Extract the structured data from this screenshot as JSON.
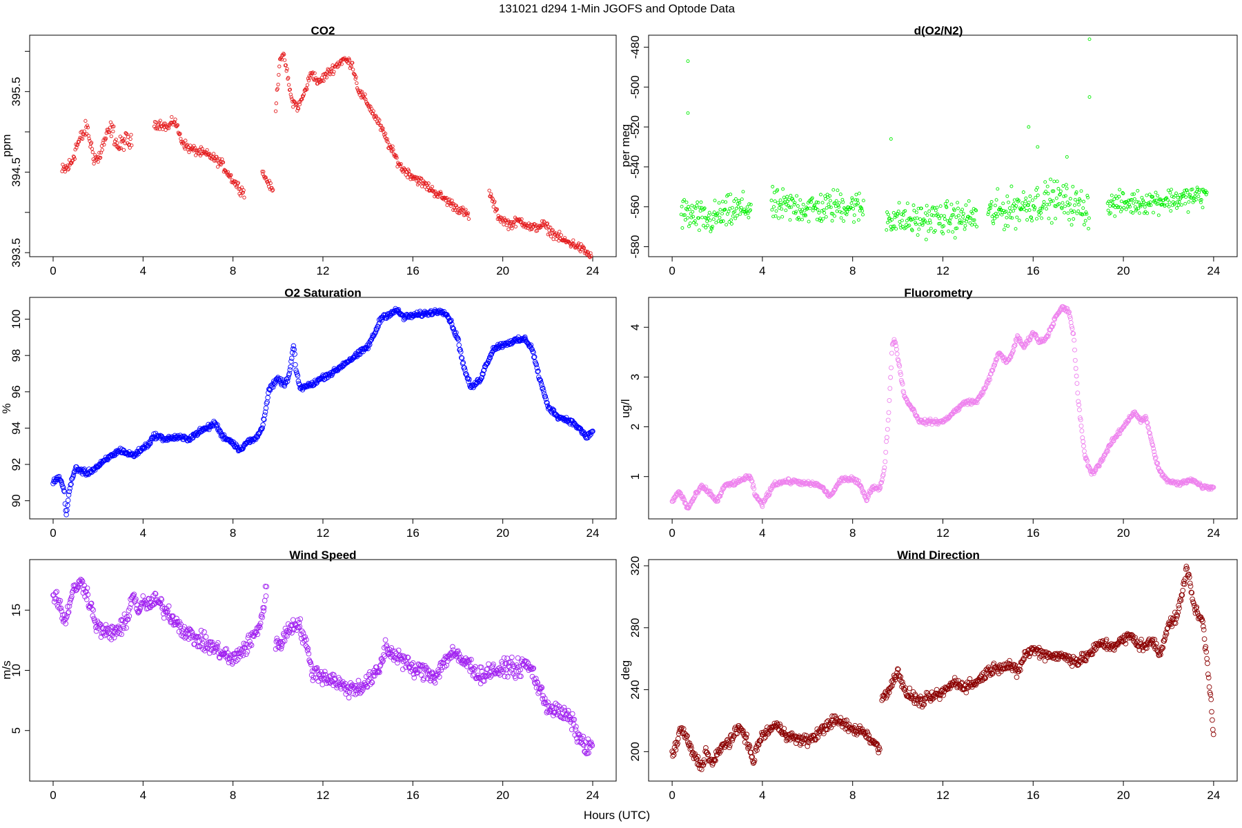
{
  "figure": {
    "title": "131021   d294   1-Min  JGOFS and Optode Data",
    "xlabel": "Hours (UTC)"
  },
  "chart_data": [
    {
      "type": "scatter",
      "id": "co2",
      "title": "CO2",
      "ylabel": "ppm",
      "color": "#e41a1c",
      "xlim": [
        0,
        24
      ],
      "ylim": [
        393.45,
        396.2
      ],
      "xticks": [
        0,
        4,
        8,
        12,
        16,
        20,
        24
      ],
      "yticks": [
        393.5,
        394,
        394.5,
        395,
        395.5,
        396
      ],
      "ytick_labels": [
        "393.5",
        "",
        "394.5",
        "",
        "395.5",
        ""
      ],
      "marker_size": 2.2,
      "segments": [
        {
          "x": [
            0.4,
            0.6,
            0.8,
            1.0,
            1.2,
            1.5,
            1.8,
            2.0,
            2.3,
            2.6,
            2.9,
            3.2,
            3.5
          ],
          "y": [
            394.5,
            394.55,
            394.6,
            394.8,
            394.9,
            395.05,
            394.7,
            394.65,
            394.9,
            395.05,
            394.8,
            394.9,
            394.85
          ],
          "noise": 0.09
        },
        {
          "x": [
            4.5,
            4.8,
            5.1,
            5.4,
            5.7,
            6.0,
            6.5,
            7.0,
            7.5,
            8.0,
            8.3,
            8.5
          ],
          "y": [
            395.1,
            395.1,
            395.05,
            395.15,
            394.9,
            394.8,
            394.75,
            394.7,
            394.6,
            394.4,
            394.3,
            394.25
          ],
          "noise": 0.05
        },
        {
          "x": [
            9.3,
            9.6,
            9.8
          ],
          "y": [
            394.5,
            394.35,
            394.25
          ],
          "noise": 0.04
        },
        {
          "x": [
            9.9,
            10.1,
            10.3,
            10.6,
            10.9,
            11.2,
            11.5,
            11.8,
            12.1,
            12.5,
            12.9,
            13.3,
            13.6,
            14.0,
            14.5,
            15.0,
            15.5,
            16.0,
            16.5,
            17.0,
            17.5,
            18.0,
            18.5
          ],
          "y": [
            395.3,
            395.95,
            395.9,
            395.4,
            395.3,
            395.5,
            395.75,
            395.6,
            395.7,
            395.8,
            395.9,
            395.85,
            395.5,
            395.35,
            395.1,
            394.8,
            394.55,
            394.45,
            394.35,
            394.25,
            394.15,
            394.05,
            393.95
          ],
          "noise": 0.05
        },
        {
          "x": [
            19.4,
            19.8,
            20.3,
            20.8,
            21.3,
            21.8,
            22.2,
            22.7,
            23.2,
            23.5,
            23.95
          ],
          "y": [
            394.25,
            393.95,
            393.85,
            393.9,
            393.8,
            393.85,
            393.75,
            393.65,
            393.6,
            393.55,
            393.45
          ],
          "noise": 0.05
        }
      ]
    },
    {
      "type": "scatter",
      "id": "o2n2",
      "title": "d(O2/N2)",
      "ylabel": "per meg",
      "color": "#00ee00",
      "xlim": [
        0,
        24
      ],
      "ylim": [
        -585,
        -474
      ],
      "xticks": [
        0,
        4,
        8,
        12,
        16,
        20,
        24
      ],
      "yticks": [
        -580,
        -560,
        -540,
        -520,
        -500,
        -480
      ],
      "ytick_labels": [
        "-580",
        "-560",
        "-540",
        "-520",
        "-500",
        "-480"
      ],
      "marker_size": 2.0,
      "segments": [
        {
          "x": [
            0.4,
            1.0,
            1.6,
            2.2,
            2.8,
            3.5
          ],
          "y": [
            -563,
            -565,
            -567,
            -564,
            -562,
            -560
          ],
          "noise": 7
        },
        {
          "x": [
            4.4,
            5.5,
            6.5,
            7.5,
            8.5
          ],
          "y": [
            -560,
            -560,
            -561,
            -559,
            -561
          ],
          "noise": 7
        },
        {
          "x": [
            9.5,
            10.5,
            11.5,
            12.5,
            13.5
          ],
          "y": [
            -565,
            -567,
            -566,
            -566,
            -565
          ],
          "noise": 7
        },
        {
          "x": [
            14.0,
            15.0,
            16.0,
            17.0,
            18.0,
            18.5
          ],
          "y": [
            -564,
            -561,
            -558,
            -556,
            -560,
            -561
          ],
          "noise": 8
        },
        {
          "x": [
            19.3,
            20.5,
            21.5,
            22.5,
            23.7
          ],
          "y": [
            -559,
            -558,
            -557,
            -556,
            -554
          ],
          "noise": 5
        }
      ],
      "outliers": {
        "x": [
          0.7,
          0.7,
          9.7,
          15.8,
          18.5,
          18.5,
          17.5,
          16.2
        ],
        "y": [
          -487,
          -513,
          -526,
          -520,
          -476,
          -505,
          -535,
          -530
        ]
      }
    },
    {
      "type": "scatter",
      "id": "o2sat",
      "title": "O2 Saturation",
      "ylabel": "%",
      "color": "#0000ff",
      "xlim": [
        0,
        24
      ],
      "ylim": [
        89.0,
        101.2
      ],
      "xticks": [
        0,
        4,
        8,
        12,
        16,
        20,
        24
      ],
      "yticks": [
        90,
        92,
        94,
        96,
        98,
        100
      ],
      "ytick_labels": [
        "90",
        "92",
        "94",
        "96",
        "98",
        "100"
      ],
      "marker_size": 3.3,
      "segments": [
        {
          "x": [
            0,
            0.2,
            0.35,
            0.5,
            0.55,
            0.6,
            0.7,
            0.85,
            1.0,
            1.5,
            2.0,
            2.5,
            3.0,
            3.3,
            3.6,
            4.0,
            4.3,
            4.5,
            5.0,
            5.5,
            6.0,
            6.5,
            7.0,
            7.2,
            7.5,
            8.0,
            8.3,
            8.6,
            9.0,
            9.3,
            9.6,
            10.0,
            10.3,
            10.5,
            10.7,
            10.8,
            10.9,
            11.0,
            11.5,
            12.0,
            12.5,
            13.0,
            13.5,
            14.0,
            14.3,
            14.6,
            15.0,
            15.3,
            15.6,
            16.0,
            16.5,
            17.0,
            17.3,
            17.6,
            18.0,
            18.3,
            18.6,
            19.0,
            19.3,
            19.6,
            20.0,
            20.5,
            21.0,
            21.3,
            21.6,
            22.0,
            22.5,
            23.0,
            23.4,
            23.7,
            24.0
          ],
          "y": [
            91.0,
            91.3,
            91.1,
            90.5,
            89.6,
            89.3,
            90.4,
            91.2,
            91.8,
            91.5,
            91.9,
            92.4,
            92.8,
            92.6,
            92.5,
            92.9,
            93.2,
            93.6,
            93.4,
            93.5,
            93.4,
            93.8,
            94.1,
            94.3,
            93.6,
            93.2,
            92.8,
            93.2,
            93.4,
            94.0,
            96.1,
            96.7,
            96.4,
            96.9,
            98.6,
            97.2,
            96.6,
            96.2,
            96.4,
            96.8,
            97.1,
            97.6,
            98.0,
            98.5,
            99.2,
            100.1,
            100.3,
            100.5,
            100.1,
            100.2,
            100.3,
            100.4,
            100.5,
            100.1,
            98.9,
            97.2,
            96.2,
            96.7,
            97.6,
            98.4,
            98.6,
            98.8,
            98.9,
            98.4,
            96.9,
            95.2,
            94.6,
            94.4,
            94.0,
            93.5,
            93.8
          ],
          "noise": 0.12
        }
      ]
    },
    {
      "type": "scatter",
      "id": "fluor",
      "title": "Fluorometry",
      "ylabel": "ug/l",
      "color": "#ee82ee",
      "xlim": [
        0,
        24
      ],
      "ylim": [
        0.15,
        4.6
      ],
      "xticks": [
        0,
        4,
        8,
        12,
        16,
        20,
        24
      ],
      "yticks": [
        1,
        2,
        3,
        4
      ],
      "ytick_labels": [
        "1",
        "2",
        "3",
        "4"
      ],
      "marker_size": 3.0,
      "segments": [
        {
          "x": [
            0,
            0.3,
            0.5,
            0.7,
            1.0,
            1.3,
            1.6,
            2.0,
            2.3,
            2.6,
            3.0,
            3.3,
            3.5,
            3.7,
            4.0,
            4.2,
            4.5,
            5.0,
            5.5,
            6.0,
            6.3,
            6.6,
            7.0,
            7.5,
            8.0,
            8.3,
            8.6,
            8.9,
            9.2,
            9.4,
            9.6,
            9.75,
            9.85,
            10.0,
            10.3,
            10.6,
            11.0,
            11.5,
            12.0,
            12.5,
            13.0,
            13.5,
            14.0,
            14.5,
            14.8,
            15.0,
            15.3,
            15.6,
            16.0,
            16.3,
            16.6,
            17.0,
            17.3,
            17.6,
            17.8,
            18.0,
            18.3,
            18.6,
            19.0,
            19.5,
            20.0,
            20.3,
            20.5,
            20.8,
            21.0,
            21.3,
            21.6,
            22.0,
            22.5,
            23.0,
            23.5,
            24.0
          ],
          "y": [
            0.5,
            0.7,
            0.55,
            0.35,
            0.6,
            0.8,
            0.7,
            0.5,
            0.8,
            0.85,
            0.9,
            1.0,
            0.95,
            0.6,
            0.45,
            0.6,
            0.85,
            0.9,
            0.9,
            0.85,
            0.85,
            0.8,
            0.6,
            0.95,
            0.95,
            0.85,
            0.55,
            0.8,
            0.75,
            1.1,
            2.3,
            3.6,
            3.8,
            3.4,
            2.6,
            2.4,
            2.1,
            2.1,
            2.1,
            2.3,
            2.5,
            2.5,
            2.9,
            3.5,
            3.3,
            3.4,
            3.8,
            3.6,
            3.9,
            3.7,
            3.8,
            4.2,
            4.4,
            4.3,
            3.8,
            2.5,
            1.4,
            1.05,
            1.3,
            1.7,
            2.0,
            2.2,
            2.3,
            2.1,
            2.2,
            1.6,
            1.1,
            0.9,
            0.85,
            0.95,
            0.8,
            0.78
          ],
          "noise": 0.04
        }
      ]
    },
    {
      "type": "scatter",
      "id": "wspd",
      "title": "Wind Speed",
      "ylabel": "m/s",
      "color": "#a020f0",
      "xlim": [
        0,
        24
      ],
      "ylim": [
        0.8,
        19.2
      ],
      "xticks": [
        0,
        4,
        8,
        12,
        16,
        20,
        24
      ],
      "yticks": [
        5,
        10,
        15
      ],
      "ytick_labels": [
        "5",
        "10",
        "15"
      ],
      "marker_size": 3.4,
      "segments": [
        {
          "x": [
            0,
            0.3,
            0.5,
            0.8,
            1.0,
            1.3,
            1.5,
            1.8,
            2.0,
            2.5,
            3.0,
            3.3,
            3.5,
            3.8,
            4.0,
            4.3,
            4.6,
            5.0,
            5.5,
            6.0,
            6.5,
            7.0,
            7.5,
            8.0,
            8.3,
            8.6,
            9.0,
            9.3,
            9.5
          ],
          "y": [
            16.5,
            15.5,
            14.0,
            16.0,
            17.0,
            17.2,
            16.5,
            14.5,
            13.5,
            13.0,
            13.5,
            14.0,
            16.5,
            15.0,
            15.5,
            15.5,
            15.8,
            15.0,
            14.0,
            13.0,
            12.5,
            12.0,
            11.5,
            10.8,
            11.5,
            12.0,
            13.0,
            14.5,
            17.0
          ],
          "noise": 0.6
        },
        {
          "x": [
            9.9,
            10.2,
            10.5,
            10.8,
            11.0,
            11.2,
            11.5,
            12.0,
            12.5,
            13.0,
            13.5,
            14.0,
            14.5,
            14.8,
            15.0,
            15.5,
            16.0,
            16.5,
            17.0,
            17.5,
            17.8,
            18.0,
            18.5,
            19.0,
            19.5,
            20.0,
            20.3,
            20.6,
            21.0,
            21.3,
            21.6,
            22.0,
            22.5,
            23.0,
            23.5,
            23.8,
            24.0
          ],
          "y": [
            12.0,
            12.5,
            13.5,
            14.0,
            13.5,
            12.5,
            10.0,
            9.5,
            9.2,
            8.5,
            8.5,
            9.0,
            10.0,
            12.0,
            11.5,
            11.0,
            10.0,
            10.0,
            9.5,
            11.0,
            11.5,
            11.0,
            10.5,
            9.5,
            10.0,
            10.0,
            10.5,
            10.0,
            10.5,
            10.0,
            8.5,
            7.0,
            6.5,
            6.0,
            4.0,
            3.5,
            3.8
          ],
          "noise": 0.6
        }
      ]
    },
    {
      "type": "scatter",
      "id": "wdir",
      "title": "Wind Direction",
      "ylabel": "deg",
      "color": "#8b0000",
      "xlim": [
        0,
        24
      ],
      "ylim": [
        181,
        324
      ],
      "xticks": [
        0,
        4,
        8,
        12,
        16,
        20,
        24
      ],
      "yticks": [
        200,
        240,
        280,
        320
      ],
      "ytick_labels": [
        "200",
        "240",
        "280",
        "320"
      ],
      "marker_size": 3.4,
      "segments": [
        {
          "x": [
            0,
            0.2,
            0.4,
            0.6,
            0.8,
            1.0,
            1.3,
            1.5,
            1.8,
            2.0,
            2.3,
            2.6,
            3.0,
            3.2,
            3.4,
            3.6,
            3.8,
            4.0,
            4.3,
            4.6,
            5.0,
            5.5,
            6.0,
            6.5,
            7.0,
            7.3,
            7.6,
            8.0,
            8.3,
            8.6,
            8.8,
            9.0,
            9.2
          ],
          "y": [
            198,
            205,
            215,
            210,
            202,
            197,
            190,
            200,
            192,
            198,
            205,
            207,
            216,
            212,
            203,
            193,
            205,
            210,
            214,
            217,
            212,
            208,
            207,
            212,
            219,
            220,
            218,
            214,
            214,
            212,
            208,
            205,
            200
          ],
          "noise": 3.0
        },
        {
          "x": [
            9.3,
            9.6,
            9.8,
            10.0,
            10.3,
            10.6,
            11.0,
            11.5,
            12.0,
            12.5,
            13.0,
            13.5,
            14.0,
            14.5,
            15.0,
            15.3,
            15.6,
            16.0,
            16.5,
            17.0,
            17.5,
            18.0,
            18.5,
            19.0,
            19.5,
            20.0,
            20.3,
            20.6,
            21.0,
            21.3,
            21.6,
            22.0,
            22.3,
            22.6,
            22.8,
            23.0,
            23.2,
            23.5,
            23.7,
            23.9,
            24.0
          ],
          "y": [
            235,
            240,
            245,
            254,
            238,
            236,
            232,
            235,
            238,
            245,
            242,
            245,
            252,
            255,
            256,
            250,
            262,
            266,
            263,
            262,
            261,
            258,
            263,
            270,
            268,
            272,
            275,
            270,
            268,
            272,
            262,
            283,
            285,
            300,
            320,
            305,
            290,
            285,
            260,
            230,
            210
          ],
          "noise": 3.0
        }
      ]
    }
  ]
}
